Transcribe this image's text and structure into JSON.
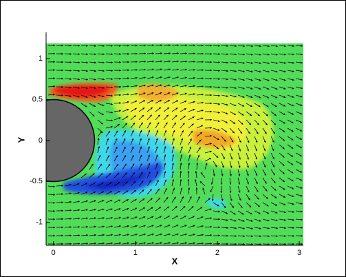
{
  "chart_data": {
    "type": "contour",
    "xlabel": "X",
    "ylabel": "Y",
    "xlim": [
      -0.09,
      3.05
    ],
    "ylim": [
      -1.28,
      1.32
    ],
    "xticks": [
      0,
      1,
      2,
      3
    ],
    "yticks": [
      -1,
      -0.5,
      0,
      0.5,
      1
    ]
  }
}
